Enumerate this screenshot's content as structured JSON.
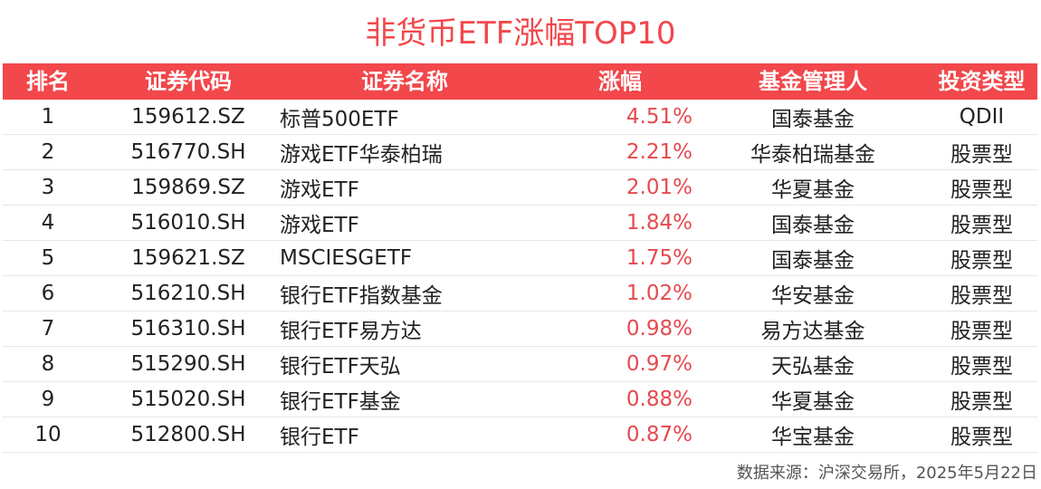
{
  "title": "非货币ETF涨幅TOP10",
  "headers": {
    "rank": "排名",
    "code": "证券代码",
    "name": "证券名称",
    "change": "涨幅",
    "manager": "基金管理人",
    "type": "投资类型"
  },
  "rows": [
    {
      "rank": "1",
      "code": "159612.SZ",
      "name": "标普500ETF",
      "change": "4.51%",
      "manager": "国泰基金",
      "type": "QDII"
    },
    {
      "rank": "2",
      "code": "516770.SH",
      "name": "游戏ETF华泰柏瑞",
      "change": "2.21%",
      "manager": "华泰柏瑞基金",
      "type": "股票型"
    },
    {
      "rank": "3",
      "code": "159869.SZ",
      "name": "游戏ETF",
      "change": "2.01%",
      "manager": "华夏基金",
      "type": "股票型"
    },
    {
      "rank": "4",
      "code": "516010.SH",
      "name": "游戏ETF",
      "change": "1.84%",
      "manager": "国泰基金",
      "type": "股票型"
    },
    {
      "rank": "5",
      "code": "159621.SZ",
      "name": "MSCIESGETF",
      "change": "1.75%",
      "manager": "国泰基金",
      "type": "股票型"
    },
    {
      "rank": "6",
      "code": "516210.SH",
      "name": "银行ETF指数基金",
      "change": "1.02%",
      "manager": "华安基金",
      "type": "股票型"
    },
    {
      "rank": "7",
      "code": "516310.SH",
      "name": "银行ETF易方达",
      "change": "0.98%",
      "manager": "易方达基金",
      "type": "股票型"
    },
    {
      "rank": "8",
      "code": "515290.SH",
      "name": "银行ETF天弘",
      "change": "0.97%",
      "manager": "天弘基金",
      "type": "股票型"
    },
    {
      "rank": "9",
      "code": "515020.SH",
      "name": "银行ETF基金",
      "change": "0.88%",
      "manager": "华夏基金",
      "type": "股票型"
    },
    {
      "rank": "10",
      "code": "512800.SH",
      "name": "银行ETF",
      "change": "0.87%",
      "manager": "华宝基金",
      "type": "股票型"
    }
  ],
  "source": "数据来源：沪深交易所，2025年5月22日",
  "colors": {
    "accent": "#f2474b",
    "change_text": "#e54a50"
  }
}
